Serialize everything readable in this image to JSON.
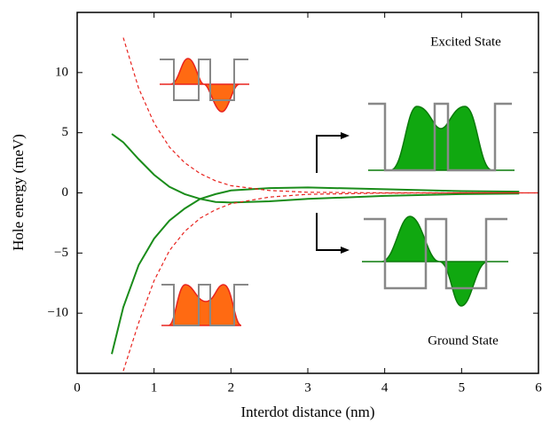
{
  "chart_data": {
    "type": "line",
    "xlabel": "Interdot distance (nm)",
    "ylabel": "Hole energy (meV)",
    "annotations": [
      "Excited State",
      "Ground State"
    ],
    "x": [
      0.45,
      0.6,
      0.8,
      1.0,
      1.2,
      1.4,
      1.6,
      1.8,
      2.0,
      2.5,
      3.0,
      4.0,
      5.0,
      5.75,
      6.0
    ],
    "series": [
      {
        "color": "#1a8c1a",
        "dashed": false,
        "values": [
          4.9,
          4.2,
          2.8,
          1.5,
          0.5,
          -0.1,
          -0.5,
          -0.75,
          -0.8,
          -0.7,
          -0.5,
          -0.25,
          -0.1,
          -0.05,
          null
        ]
      },
      {
        "color": "#1a8c1a",
        "dashed": false,
        "values": [
          -13.4,
          -9.5,
          -6,
          -3.8,
          -2.3,
          -1.3,
          -0.5,
          -0.1,
          0.2,
          0.4,
          0.45,
          0.3,
          0.15,
          0.1,
          null
        ]
      },
      {
        "color": "#e8231e",
        "dashed": true,
        "values": [
          null,
          12.9,
          8.7,
          5.8,
          3.8,
          2.5,
          1.6,
          1.0,
          0.6,
          0.2,
          0.05,
          0,
          0,
          0,
          0
        ]
      },
      {
        "color": "#e8231e",
        "dashed": true,
        "values": [
          null,
          -14.8,
          -10.8,
          -7.3,
          -4.8,
          -3.2,
          -2.1,
          -1.4,
          -0.9,
          -0.35,
          -0.12,
          -0.02,
          0,
          0,
          0
        ]
      }
    ],
    "xlim": [
      0,
      6
    ],
    "xticks": [
      0,
      1,
      2,
      3,
      4,
      5,
      6
    ],
    "ylim": [
      -15,
      15
    ],
    "yticks": [
      {
        "value": -10,
        "label": "−10"
      },
      {
        "value": -5,
        "label": "−5"
      },
      0,
      5,
      10
    ]
  }
}
